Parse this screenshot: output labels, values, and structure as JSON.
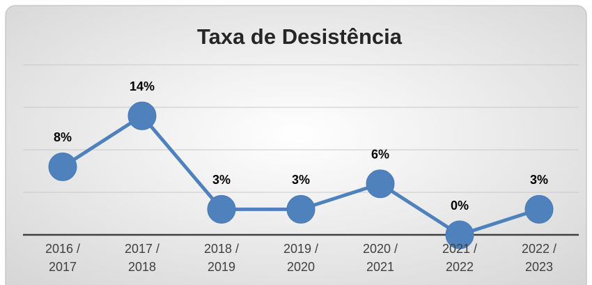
{
  "chart_data": {
    "type": "line",
    "title": "Taxa de Desistência",
    "categories": [
      "2016 / 2017",
      "2017 / 2018",
      "2018 / 2019",
      "2019 / 2020",
      "2020 / 2021",
      "2021 / 2022",
      "2022 / 2023"
    ],
    "series": [
      {
        "name": "Taxa de Desistência",
        "color": "#4f81bd",
        "values": [
          8,
          14,
          3,
          3,
          6,
          0,
          3
        ],
        "value_labels": [
          "8%",
          "14%",
          "3%",
          "3%",
          "6%",
          "0%",
          "3%"
        ]
      }
    ],
    "ylim": [
      0,
      20
    ],
    "yticks": [
      0,
      5,
      10,
      15,
      20
    ],
    "grid": true
  }
}
